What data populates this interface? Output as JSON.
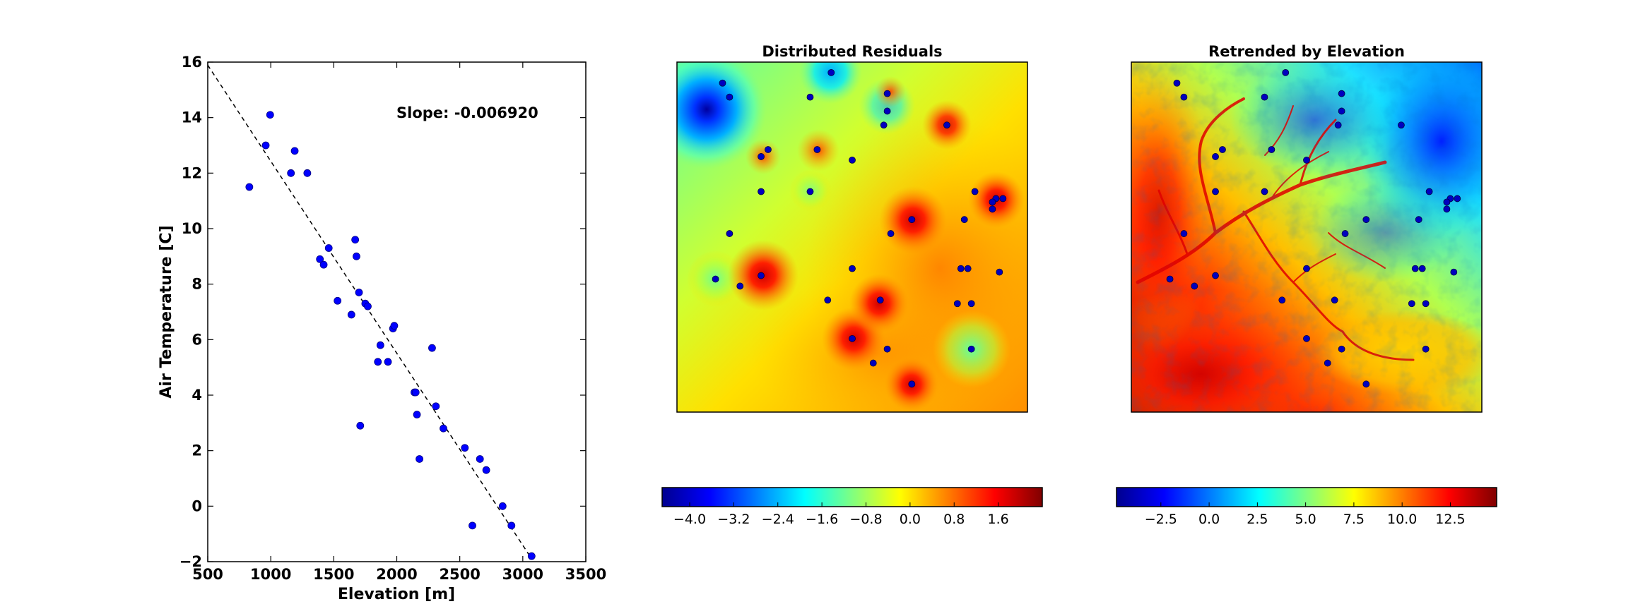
{
  "scatter": {
    "chart_data": {
      "type": "scatter",
      "xlabel": "Elevation [m]",
      "ylabel": "Air Temperature [C]",
      "xlim": [
        500,
        3500
      ],
      "ylim": [
        -2,
        16
      ],
      "xticks": [
        500,
        1000,
        1500,
        2000,
        2500,
        3000,
        3500
      ],
      "yticks": [
        -2,
        0,
        2,
        4,
        6,
        8,
        10,
        12,
        14,
        16
      ],
      "annotation": "Slope: -0.006920",
      "trend_line": {
        "slope": -0.00692,
        "intercept": 19.35,
        "x_range": [
          500,
          3050
        ]
      },
      "point_color": "#0000ff",
      "points": [
        [
          830,
          11.5
        ],
        [
          960,
          13.0
        ],
        [
          995,
          14.1
        ],
        [
          1160,
          12.0
        ],
        [
          1190,
          12.8
        ],
        [
          1290,
          12.0
        ],
        [
          1390,
          8.9
        ],
        [
          1420,
          8.7
        ],
        [
          1460,
          9.3
        ],
        [
          1530,
          7.4
        ],
        [
          1640,
          6.9
        ],
        [
          1670,
          9.6
        ],
        [
          1680,
          9.0
        ],
        [
          1700,
          7.7
        ],
        [
          1710,
          2.9
        ],
        [
          1750,
          7.3
        ],
        [
          1770,
          7.2
        ],
        [
          1850,
          5.2
        ],
        [
          1870,
          5.8
        ],
        [
          1930,
          5.2
        ],
        [
          1970,
          6.4
        ],
        [
          1980,
          6.5
        ],
        [
          2140,
          4.1
        ],
        [
          2150,
          4.1
        ],
        [
          2160,
          3.3
        ],
        [
          2180,
          1.7
        ],
        [
          2280,
          5.7
        ],
        [
          2310,
          3.6
        ],
        [
          2370,
          2.8
        ],
        [
          2540,
          2.1
        ],
        [
          2600,
          -0.7
        ],
        [
          2660,
          1.7
        ],
        [
          2710,
          1.3
        ],
        [
          2840,
          0.0
        ],
        [
          2910,
          -0.7
        ],
        [
          3070,
          -1.8
        ]
      ]
    }
  },
  "residuals_map": {
    "title": "Distributed Residuals",
    "colorbar": {
      "ticks": [
        "−4.0",
        "−3.2",
        "−2.4",
        "−1.6",
        "−0.8",
        "0.0",
        "0.8",
        "1.6"
      ]
    }
  },
  "elevation_map": {
    "title": "Retrended by Elevation",
    "colorbar": {
      "ticks": [
        "−2.5",
        "0.0",
        "2.5",
        "5.0",
        "7.5",
        "10.0",
        "12.5"
      ]
    }
  },
  "colormap": "jet"
}
